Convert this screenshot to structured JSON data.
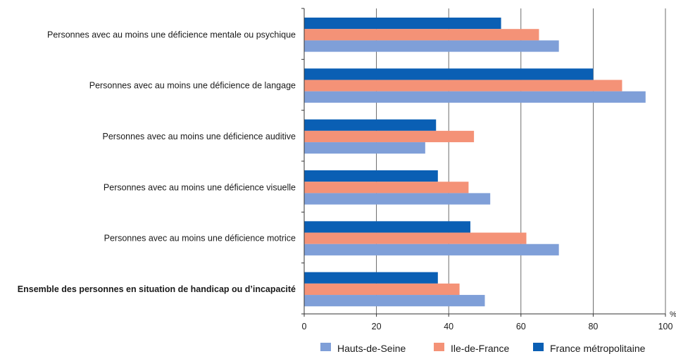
{
  "chart_data": {
    "type": "bar",
    "orientation": "horizontal",
    "categories": [
      "Personnes avec au moins une déficience mentale ou psychique",
      "Personnes avec au moins une déficience de langage",
      "Personnes avec au moins une déficience auditive",
      "Personnes avec au moins une déficience visuelle",
      "Personnes avec au moins une déficience motrice",
      "Ensemble des personnes en situation de handicap ou d’incapacité"
    ],
    "bold_categories": [
      "Ensemble des personnes en situation de handicap ou d’incapacité"
    ],
    "series": [
      {
        "name": "France métropolitaine",
        "color": "#0a5fb4",
        "values": [
          54.5,
          80,
          36.5,
          37,
          46,
          37
        ]
      },
      {
        "name": "Ile-de-France",
        "color": "#f49277",
        "values": [
          65,
          88,
          47,
          45.5,
          61.5,
          43
        ]
      },
      {
        "name": "Hauts-de-Seine",
        "color": "#7f9fd8",
        "values": [
          70.5,
          94.5,
          33.5,
          51.5,
          70.5,
          50
        ]
      }
    ],
    "legend_order": [
      "Hauts-de-Seine",
      "Ile-de-France",
      "France métropolitaine"
    ],
    "legend_position": "bottom",
    "x_ticks": [
      "0",
      "20",
      "40",
      "60",
      "80",
      "100"
    ],
    "xlim": [
      0,
      100
    ],
    "x_unit": "%",
    "grid": true
  }
}
